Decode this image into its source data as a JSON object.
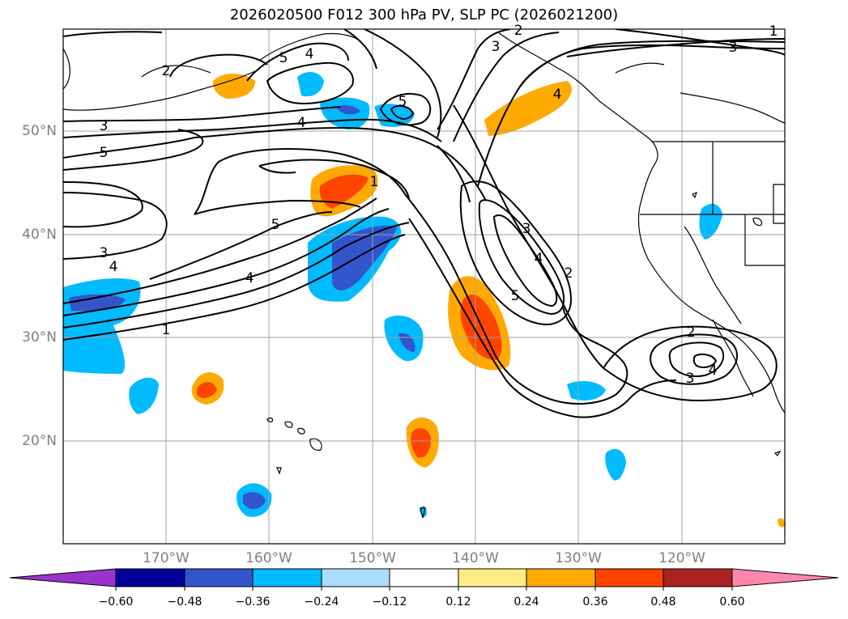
{
  "title": "2026020500 F012 300 hPa PV, SLP PC (2026021200)",
  "lat_labels": [
    "50°N",
    "40°N",
    "30°N",
    "20°N"
  ],
  "lon_labels": [
    "170°W",
    "160°W",
    "150°W",
    "140°W",
    "130°W",
    "120°W"
  ],
  "colorbar": {
    "ticks": [
      "−0.60",
      "−0.48",
      "−0.36",
      "−0.24",
      "−0.12",
      "0.12",
      "0.24",
      "0.36",
      "0.48",
      "0.60"
    ],
    "colors": [
      "#9933cc",
      "#000099",
      "#3355cc",
      "#00bbff",
      "#aaddff",
      "#ffffff",
      "#ffee88",
      "#ffaa00",
      "#ff4400",
      "#aa2222",
      "#ff88aa"
    ]
  },
  "contour_labels": [
    "1",
    "2",
    "3",
    "4",
    "5",
    "3",
    "4",
    "5",
    "4",
    "5",
    "5",
    "4",
    "3",
    "2",
    "3",
    "4",
    "5",
    "2",
    "3",
    "4",
    "1",
    "4",
    "3",
    "2",
    "1"
  ]
}
